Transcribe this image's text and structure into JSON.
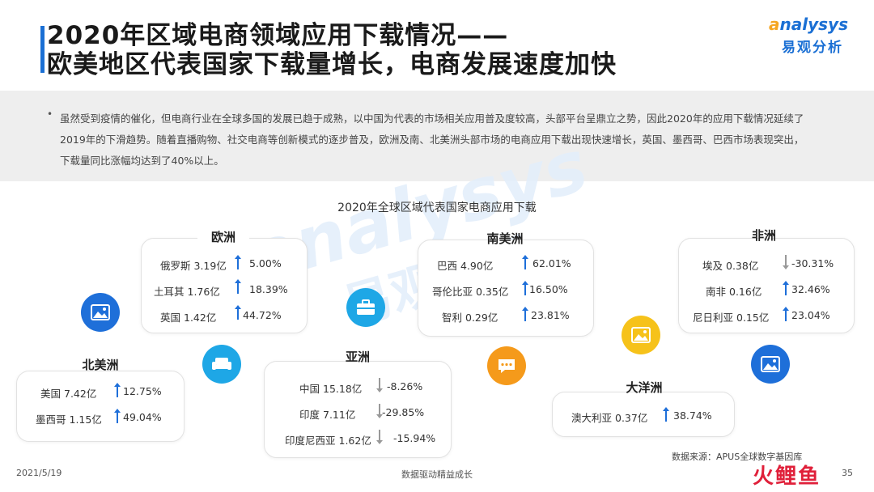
{
  "header": {
    "title_line1": "2020年区域电商领域应用下载情况——",
    "title_line2": "欧美地区代表国家下载量增长，电商发展速度加快",
    "logo_en_a": "a",
    "logo_en_rest": "nalysys",
    "logo_cn": "易观分析"
  },
  "summary": {
    "bullet": "•",
    "text": "虽然受到疫情的催化，但电商行业在全球多国的发展已趋于成熟，以中国为代表的市场相关应用普及度较高，头部平台呈鼎立之势，因此2020年的应用下载情况延续了2019年的下滑趋势。随着直播购物、社交电商等创新模式的逐步普及，欧洲及南、北美洲头部市场的电商应用下载出现快速增长，英国、墨西哥、巴西市场表现突出，下载量同比涨幅均达到了40%以上。"
  },
  "watermark": {
    "en": "analysys",
    "cn": "易观分析"
  },
  "chart_data": {
    "type": "table",
    "title": "2020年全球区域代表国家电商应用下载",
    "regions": [
      {
        "name": "欧洲",
        "rows": [
          {
            "country": "俄罗斯",
            "downloads": "3.19亿",
            "growth": "5.00%",
            "direction": "up"
          },
          {
            "country": "土耳其",
            "downloads": "1.76亿",
            "growth": "18.39%",
            "direction": "up"
          },
          {
            "country": "英国",
            "downloads": "1.42亿",
            "growth": "44.72%",
            "direction": "up"
          }
        ]
      },
      {
        "name": "北美洲",
        "rows": [
          {
            "country": "美国",
            "downloads": "7.42亿",
            "growth": "12.75%",
            "direction": "up"
          },
          {
            "country": "墨西哥",
            "downloads": "1.15亿",
            "growth": "49.04%",
            "direction": "up"
          }
        ]
      },
      {
        "name": "亚洲",
        "rows": [
          {
            "country": "中国",
            "downloads": "15.18亿",
            "growth": "-8.26%",
            "direction": "down"
          },
          {
            "country": "印度",
            "downloads": "7.11亿",
            "growth": "-29.85%",
            "direction": "down"
          },
          {
            "country": "印度尼西亚",
            "downloads": "1.62亿",
            "growth": "-15.94%",
            "direction": "down"
          }
        ]
      },
      {
        "name": "南美洲",
        "rows": [
          {
            "country": "巴西",
            "downloads": "4.90亿",
            "growth": "62.01%",
            "direction": "up"
          },
          {
            "country": "哥伦比亚",
            "downloads": "0.35亿",
            "growth": "16.50%",
            "direction": "up"
          },
          {
            "country": "智利",
            "downloads": "0.29亿",
            "growth": "23.81%",
            "direction": "up"
          }
        ]
      },
      {
        "name": "大洋洲",
        "rows": [
          {
            "country": "澳大利亚",
            "downloads": "0.37亿",
            "growth": "38.74%",
            "direction": "up"
          }
        ]
      },
      {
        "name": "非洲",
        "rows": [
          {
            "country": "埃及",
            "downloads": "0.38亿",
            "growth": "-30.31%",
            "direction": "down"
          },
          {
            "country": "南非",
            "downloads": "0.16亿",
            "growth": "32.46%",
            "direction": "up"
          },
          {
            "country": "尼日利亚",
            "downloads": "0.15亿",
            "growth": "23.04%",
            "direction": "up"
          }
        ]
      }
    ]
  },
  "colors": {
    "up": "#1e6fd9",
    "down": "#999999",
    "accent_blue": "#1e6fd9",
    "accent_orange": "#f59a1b"
  },
  "icons": [
    "image-icon",
    "sofa-icon",
    "briefcase-icon",
    "chat-icon",
    "photo-icon",
    "picture-icon"
  ],
  "footer": {
    "date": "2021/5/19",
    "center": "数据驱动精益成长",
    "source": "数据来源：APUS全球数字基因库",
    "page": "35",
    "stamp": "火鲤鱼"
  }
}
